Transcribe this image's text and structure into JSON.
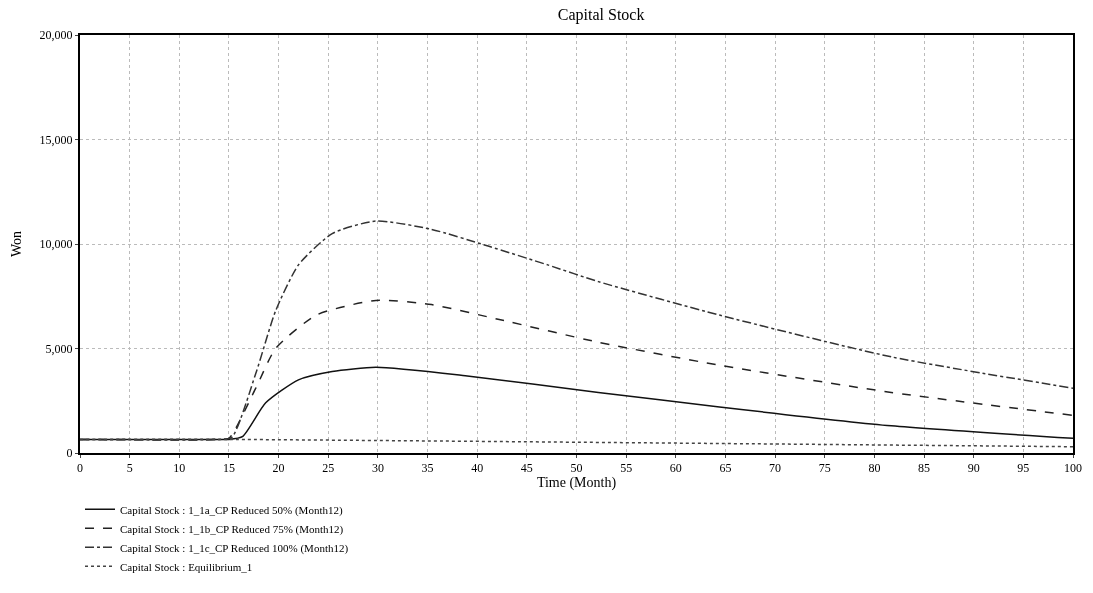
{
  "chart_data": {
    "type": "line",
    "title": "Capital Stock",
    "xlabel": "Time (Month)",
    "ylabel": "Won",
    "xlim": [
      0,
      100
    ],
    "xticks": [
      0,
      5,
      10,
      15,
      20,
      25,
      30,
      35,
      40,
      45,
      50,
      55,
      60,
      65,
      70,
      75,
      80,
      85,
      90,
      95,
      100
    ],
    "ylim": [
      0,
      20000
    ],
    "yticks": [
      0,
      {
        "value": 5000,
        "label": "5,000"
      },
      {
        "value": 10000,
        "label": "10,000"
      },
      {
        "value": 15000,
        "label": "15,000"
      },
      {
        "value": 20000,
        "label": "20,000"
      }
    ],
    "grid": true,
    "legend": "bottom",
    "marker": "none",
    "series": [
      {
        "name": "Capital Stock : 1_1a_CP Reduced 50% (Month12)",
        "color": "#111111",
        "line_style": "solid",
        "x": [
          0,
          14,
          15,
          16.4,
          18.7,
          22,
          25.4,
          29.8,
          38.8,
          52.2,
          64.4,
          81.7,
          100
        ],
        "values": [
          650,
          650,
          650,
          800,
          2400,
          3500,
          3900,
          4100,
          3700,
          2900,
          2200,
          1300,
          700
        ]
      },
      {
        "name": "Capital Stock : 1_1b_CP Reduced 75% (Month12)",
        "color": "#222222",
        "line_style": "dashed",
        "x": [
          0,
          14,
          15,
          17.7,
          19.7,
          23.8,
          29.8,
          35.4,
          42.1,
          52.2,
          64.4,
          81.7,
          100
        ],
        "values": [
          650,
          650,
          700,
          3100,
          5000,
          6600,
          7300,
          7100,
          6400,
          5300,
          4200,
          2900,
          1800
        ]
      },
      {
        "name": "Capital Stock : 1_1c_CP Reduced 100% (Month12)",
        "color": "#333333",
        "line_style": "dashdot",
        "x": [
          0,
          14,
          15.3,
          17.7,
          19.7,
          22,
          25.4,
          29.8,
          35.4,
          41.1,
          47.1,
          52.2,
          64.4,
          81.7,
          100
        ],
        "values": [
          650,
          650,
          750,
          3800,
          6800,
          9000,
          10500,
          11100,
          10700,
          9900,
          9000,
          8200,
          6600,
          4600,
          3100
        ]
      },
      {
        "name": "Capital Stock : Equilibrium_1",
        "color": "#444444",
        "line_style": "dotted",
        "x": [
          0,
          15,
          100
        ],
        "values": [
          650,
          650,
          300
        ]
      }
    ]
  }
}
